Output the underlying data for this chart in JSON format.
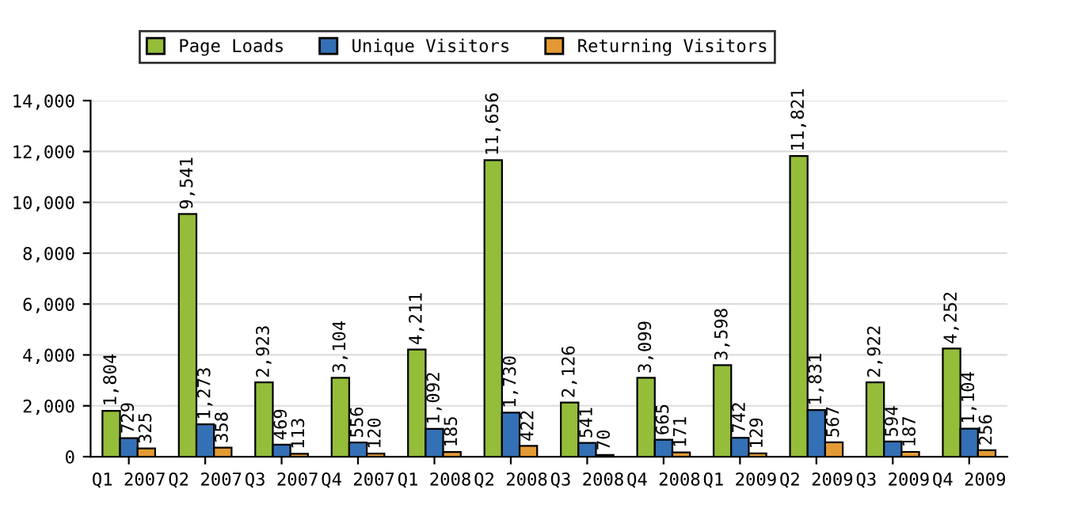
{
  "chart_data": {
    "type": "bar",
    "categories": [
      "Q1 2007",
      "Q2 2007",
      "Q3 2007",
      "Q4 2007",
      "Q1 2008",
      "Q2 2008",
      "Q3 2008",
      "Q4 2008",
      "Q1 2009",
      "Q2 2009",
      "Q3 2009",
      "Q4 2009"
    ],
    "series": [
      {
        "name": "Page Loads",
        "color": "#94bd3a",
        "values": [
          1804,
          9541,
          2923,
          3104,
          4211,
          11656,
          2126,
          3099,
          3598,
          11821,
          2922,
          4252
        ],
        "value_labels": [
          "1,804",
          "9,541",
          "2,923",
          "3,104",
          "4,211",
          "11,656",
          "2,126",
          "3,099",
          "3,598",
          "11,821",
          "2,922",
          "4,252"
        ]
      },
      {
        "name": "Unique Visitors",
        "color": "#3470b5",
        "values": [
          729,
          1273,
          469,
          556,
          1092,
          1730,
          541,
          665,
          742,
          1831,
          594,
          1104
        ],
        "value_labels": [
          "729",
          "1,273",
          "469",
          "556",
          "1,092",
          "1,730",
          "541",
          "665",
          "742",
          "1,831",
          "594",
          "1,104"
        ]
      },
      {
        "name": "Returning Visitors",
        "color": "#e39a34",
        "values": [
          325,
          358,
          113,
          120,
          185,
          422,
          70,
          171,
          129,
          567,
          187,
          256
        ],
        "value_labels": [
          "325",
          "358",
          "113",
          "120",
          "185",
          "422",
          "70",
          "171",
          "129",
          "567",
          "187",
          "256"
        ]
      }
    ],
    "ylim": [
      0,
      14000
    ],
    "yticks": [
      {
        "value": 0,
        "label": "0"
      },
      {
        "value": 2000,
        "label": "2,000"
      },
      {
        "value": 4000,
        "label": "4,000"
      },
      {
        "value": 6000,
        "label": "6,000"
      },
      {
        "value": 8000,
        "label": "8,000"
      },
      {
        "value": 10000,
        "label": "10,000"
      },
      {
        "value": 12000,
        "label": "12,000"
      },
      {
        "value": 14000,
        "label": "14,000"
      }
    ],
    "grid": "y",
    "legend": "top"
  }
}
